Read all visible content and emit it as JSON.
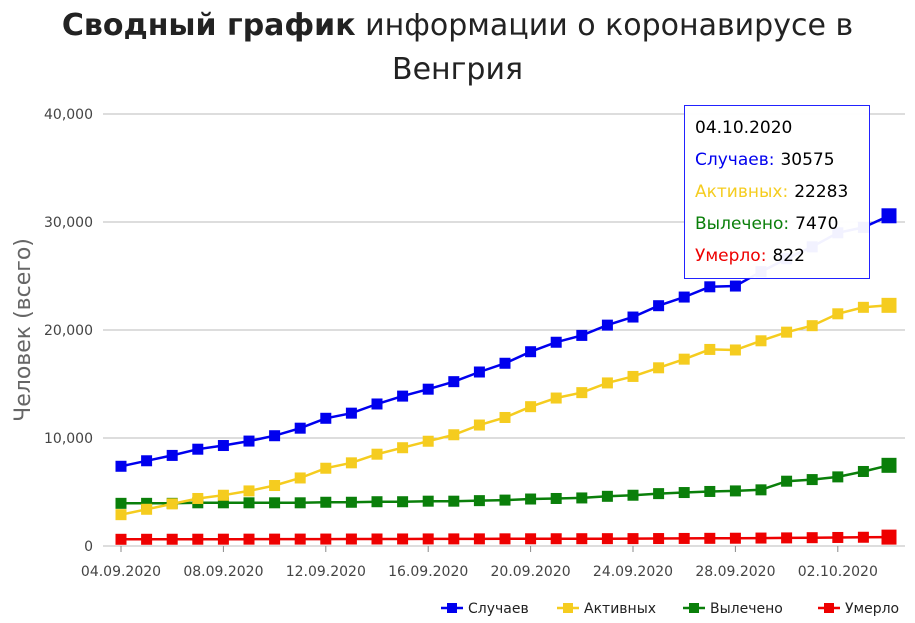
{
  "title": {
    "bold": "Сводный график",
    "rest": " информации о коронавирусе в Венгрия"
  },
  "colors": {
    "cases": "#0000ee",
    "active": "#f5cc1f",
    "recovered": "#0a7f0a",
    "deaths": "#ee0000",
    "grid": "#bbbbbb",
    "tooltip_border": "#2222ff"
  },
  "tooltip": {
    "date": "04.10.2020",
    "rows": [
      {
        "label": "Случаев:",
        "value": "30575"
      },
      {
        "label": "Активных:",
        "value": "22283"
      },
      {
        "label": "Вылечено:",
        "value": "7470"
      },
      {
        "label": "Умерло:",
        "value": "822"
      }
    ]
  },
  "chart_data": {
    "type": "line",
    "title": "Сводный график информации о коронавирусе в Венгрия",
    "xlabel": "",
    "ylabel": "Человек (всего)",
    "ylim": [
      0,
      40000
    ],
    "yticks": [
      "0",
      "10,000",
      "20,000",
      "30,000",
      "40,000"
    ],
    "xtick_labels": [
      "04.09.2020",
      "08.09.2020",
      "12.09.2020",
      "16.09.2020",
      "20.09.2020",
      "24.09.2020",
      "28.09.2020",
      "02.10.2020"
    ],
    "grid": true,
    "legend_position": "bottom-right",
    "x": [
      "04.09.2020",
      "05.09.2020",
      "06.09.2020",
      "07.09.2020",
      "08.09.2020",
      "09.09.2020",
      "10.09.2020",
      "11.09.2020",
      "12.09.2020",
      "13.09.2020",
      "14.09.2020",
      "15.09.2020",
      "16.09.2020",
      "17.09.2020",
      "18.09.2020",
      "19.09.2020",
      "20.09.2020",
      "21.09.2020",
      "22.09.2020",
      "23.09.2020",
      "24.09.2020",
      "25.09.2020",
      "26.09.2020",
      "27.09.2020",
      "28.09.2020",
      "29.09.2020",
      "30.09.2020",
      "01.10.2020",
      "02.10.2020",
      "03.10.2020",
      "04.10.2020"
    ],
    "series": [
      {
        "name": "Случаев",
        "color": "#0000ee",
        "values": [
          7382,
          7892,
          8387,
          8963,
          9304,
          9715,
          10211,
          10909,
          11825,
          12300,
          13150,
          13879,
          14520,
          15217,
          16111,
          16920,
          17990,
          18866,
          19499,
          20450,
          21200,
          22250,
          23050,
          24000,
          24070,
          25400,
          26600,
          27700,
          29000,
          29500,
          30575
        ]
      },
      {
        "name": "Активных",
        "color": "#f5cc1f",
        "values": [
          2900,
          3400,
          3900,
          4400,
          4700,
          5100,
          5600,
          6300,
          7200,
          7700,
          8500,
          9100,
          9700,
          10300,
          11200,
          11900,
          12900,
          13700,
          14200,
          15100,
          15700,
          16500,
          17300,
          18200,
          18150,
          19000,
          19800,
          20400,
          21500,
          22100,
          22283
        ]
      },
      {
        "name": "Вылечено",
        "color": "#0a7f0a",
        "values": [
          3950,
          3950,
          3950,
          4000,
          4000,
          4000,
          4000,
          4000,
          4050,
          4050,
          4100,
          4100,
          4150,
          4150,
          4200,
          4250,
          4350,
          4400,
          4450,
          4600,
          4700,
          4850,
          4950,
          5050,
          5100,
          5200,
          6000,
          6150,
          6400,
          6900,
          7470
        ]
      },
      {
        "name": "Умерло",
        "color": "#ee0000",
        "values": [
          620,
          622,
          625,
          628,
          631,
          634,
          637,
          640,
          643,
          646,
          649,
          652,
          655,
          658,
          661,
          664,
          668,
          672,
          676,
          680,
          684,
          690,
          700,
          710,
          720,
          735,
          750,
          770,
          790,
          810,
          822
        ]
      }
    ]
  }
}
